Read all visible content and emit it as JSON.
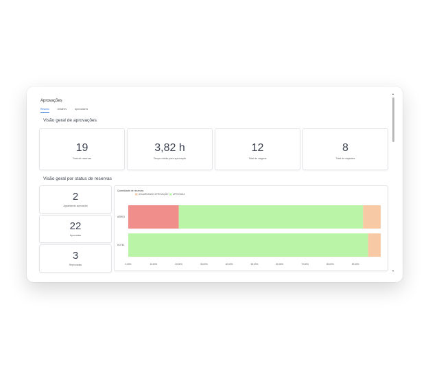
{
  "page": {
    "title": "Aprovações",
    "tabs": [
      "Resumo",
      "Detalhes",
      "Aprovadores"
    ],
    "active_tab": 0
  },
  "overview": {
    "title": "Visão geral de aprovações",
    "stats": [
      {
        "value": "19",
        "label": "Total de reservas"
      },
      {
        "value": "3,82 h",
        "label": "Tempo médio para aprovação"
      },
      {
        "value": "12",
        "label": "Total de viagens"
      },
      {
        "value": "8",
        "label": "Total de viajantes"
      }
    ]
  },
  "status_section": {
    "title": "Visão geral por status de reservas",
    "cards": [
      {
        "value": "2",
        "label": "Aguardando aprovação"
      },
      {
        "value": "22",
        "label": "Aprovadas"
      },
      {
        "value": "3",
        "label": "Reprovadas"
      }
    ]
  },
  "chart_data": {
    "type": "bar",
    "orientation": "horizontal",
    "stacked": true,
    "title": "Quantidade de reservas",
    "categories": [
      "AÉREO",
      "HOTEL"
    ],
    "series": [
      {
        "name": "REPROVADA",
        "color": "#f08e8b",
        "values": [
          20,
          0
        ]
      },
      {
        "name": "APROVADA",
        "color": "#b9f4a7",
        "values": [
          73,
          95
        ]
      },
      {
        "name": "AGUARDANDO APROVAÇÃO",
        "color": "#f8c9a5",
        "values": [
          7,
          5
        ]
      }
    ],
    "legend": [
      {
        "name": "AGUARDANDO APROVAÇÃO",
        "color": "#f8c9a5"
      },
      {
        "name": "APROVADA",
        "color": "#b9f4a7"
      }
    ],
    "xlim": [
      0,
      100
    ],
    "x_ticks": [
      "0,00%",
      "10,00%",
      "20,00%",
      "30,00%",
      "40,00%",
      "50,00%",
      "60,00%",
      "70,00%",
      "80,00%",
      "90,00%"
    ],
    "x_tick_values": [
      0,
      10,
      20,
      30,
      40,
      50,
      60,
      70,
      80,
      90
    ],
    "grid": false
  }
}
